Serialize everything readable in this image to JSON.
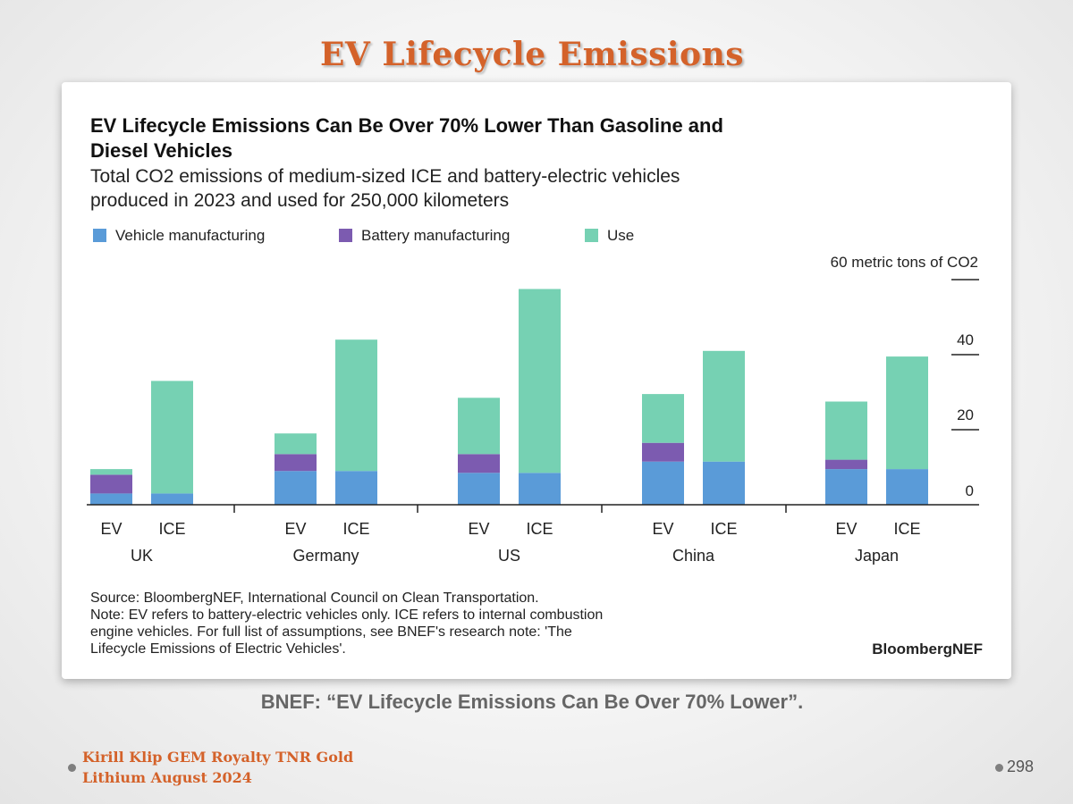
{
  "slide": {
    "title": "EV Lifecycle Emissions",
    "caption": "BNEF: “EV Lifecycle Emissions Can Be Over 70% Lower”.",
    "credit_line1": "Kirill Klip GEM Royalty TNR Gold",
    "credit_line2": "Lithium August 2024",
    "page_number": "298"
  },
  "chart_data": {
    "type": "bar",
    "stacked": true,
    "title": "EV Lifecycle Emissions Can Be Over 70% Lower Than Gasoline and Diesel Vehicles",
    "subtitle": "Total CO2 emissions of medium-sized ICE and battery-electric vehicles produced in 2023 and used for 250,000 kilometers",
    "ylabel": "60 metric tons of CO2",
    "ylim": [
      0,
      60
    ],
    "yticks": [
      0,
      20,
      40,
      60
    ],
    "ytick_labels": [
      "0",
      "20",
      "40",
      ""
    ],
    "groups": [
      "UK",
      "Germany",
      "US",
      "China",
      "Japan"
    ],
    "categories": [
      "EV",
      "ICE",
      "EV",
      "ICE",
      "EV",
      "ICE",
      "EV",
      "ICE",
      "EV",
      "ICE"
    ],
    "series": [
      {
        "name": "Vehicle manufacturing",
        "color": "#5a9bd8",
        "values": [
          3,
          3,
          9,
          9,
          8.5,
          8.5,
          11.5,
          11.5,
          9.5,
          9.5
        ]
      },
      {
        "name": "Battery manufacturing",
        "color": "#7c5bb0",
        "values": [
          5,
          0,
          4.5,
          0,
          5,
          0,
          5,
          0,
          2.5,
          0
        ]
      },
      {
        "name": "Use",
        "color": "#76d1b3",
        "values": [
          1.5,
          30,
          5.5,
          35,
          15,
          49,
          13,
          29.5,
          15.5,
          30
        ]
      }
    ],
    "source": "Source: BloombergNEF, International Council on Clean Transportation.",
    "note_lines": [
      "Note: EV refers to battery-electric vehicles only. ICE refers to internal combustion",
      "engine vehicles. For full list of assumptions, see BNEF's research note: 'The",
      "Lifecycle Emissions of Electric Vehicles'."
    ],
    "brand": "BloombergNEF"
  }
}
